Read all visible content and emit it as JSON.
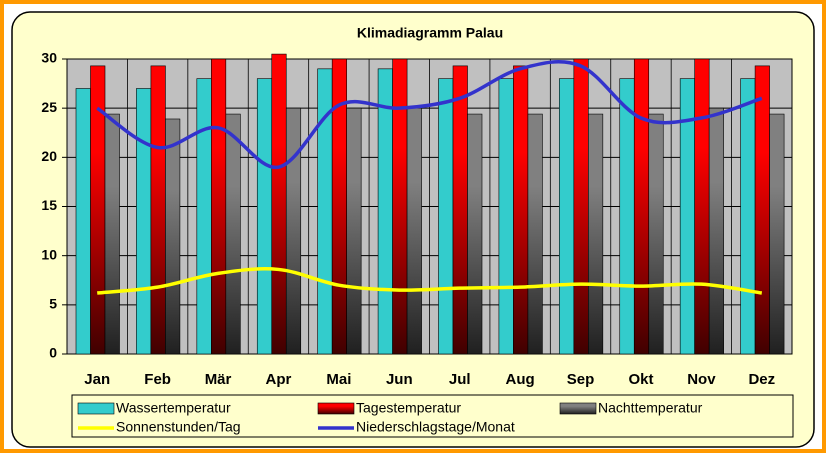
{
  "chart_data": {
    "type": "bar",
    "title": "Klimadiagramm Palau",
    "categories": [
      "Jan",
      "Feb",
      "Mär",
      "Apr",
      "Mai",
      "Jun",
      "Jul",
      "Aug",
      "Sep",
      "Okt",
      "Nov",
      "Dez"
    ],
    "series": [
      {
        "name": "Wassertemperatur",
        "type": "bar",
        "color": "#33cccc",
        "values": [
          27,
          27,
          28,
          28,
          29,
          29,
          28,
          28,
          28,
          28,
          28,
          28
        ]
      },
      {
        "name": "Tagestemperatur",
        "type": "bar",
        "color": "#ff0000",
        "values": [
          29.3,
          29.3,
          30,
          30.5,
          30,
          30,
          29.3,
          29.3,
          30,
          30,
          30,
          29.3
        ]
      },
      {
        "name": "Nachttemperatur",
        "type": "bar",
        "color": "#808080",
        "values": [
          24.4,
          23.9,
          24.4,
          25,
          25,
          25,
          24.4,
          24.4,
          24.4,
          24.4,
          25,
          24.4
        ]
      },
      {
        "name": "Sonnenstunden/Tag",
        "type": "line",
        "color": "#ffff00",
        "values": [
          6.2,
          6.8,
          8.2,
          8.6,
          7,
          6.5,
          6.7,
          6.8,
          7.1,
          6.9,
          7.1,
          6.2
        ]
      },
      {
        "name": "Niederschlagstage/Monat",
        "type": "line",
        "color": "#3333cc",
        "values": [
          25,
          21,
          23,
          19,
          25.3,
          25,
          26,
          29,
          29.3,
          24,
          24,
          26
        ]
      }
    ],
    "ylim": [
      0,
      30
    ],
    "yticks": [
      0,
      5,
      10,
      15,
      20,
      25,
      30
    ],
    "grid": true,
    "legend": "bottom"
  }
}
